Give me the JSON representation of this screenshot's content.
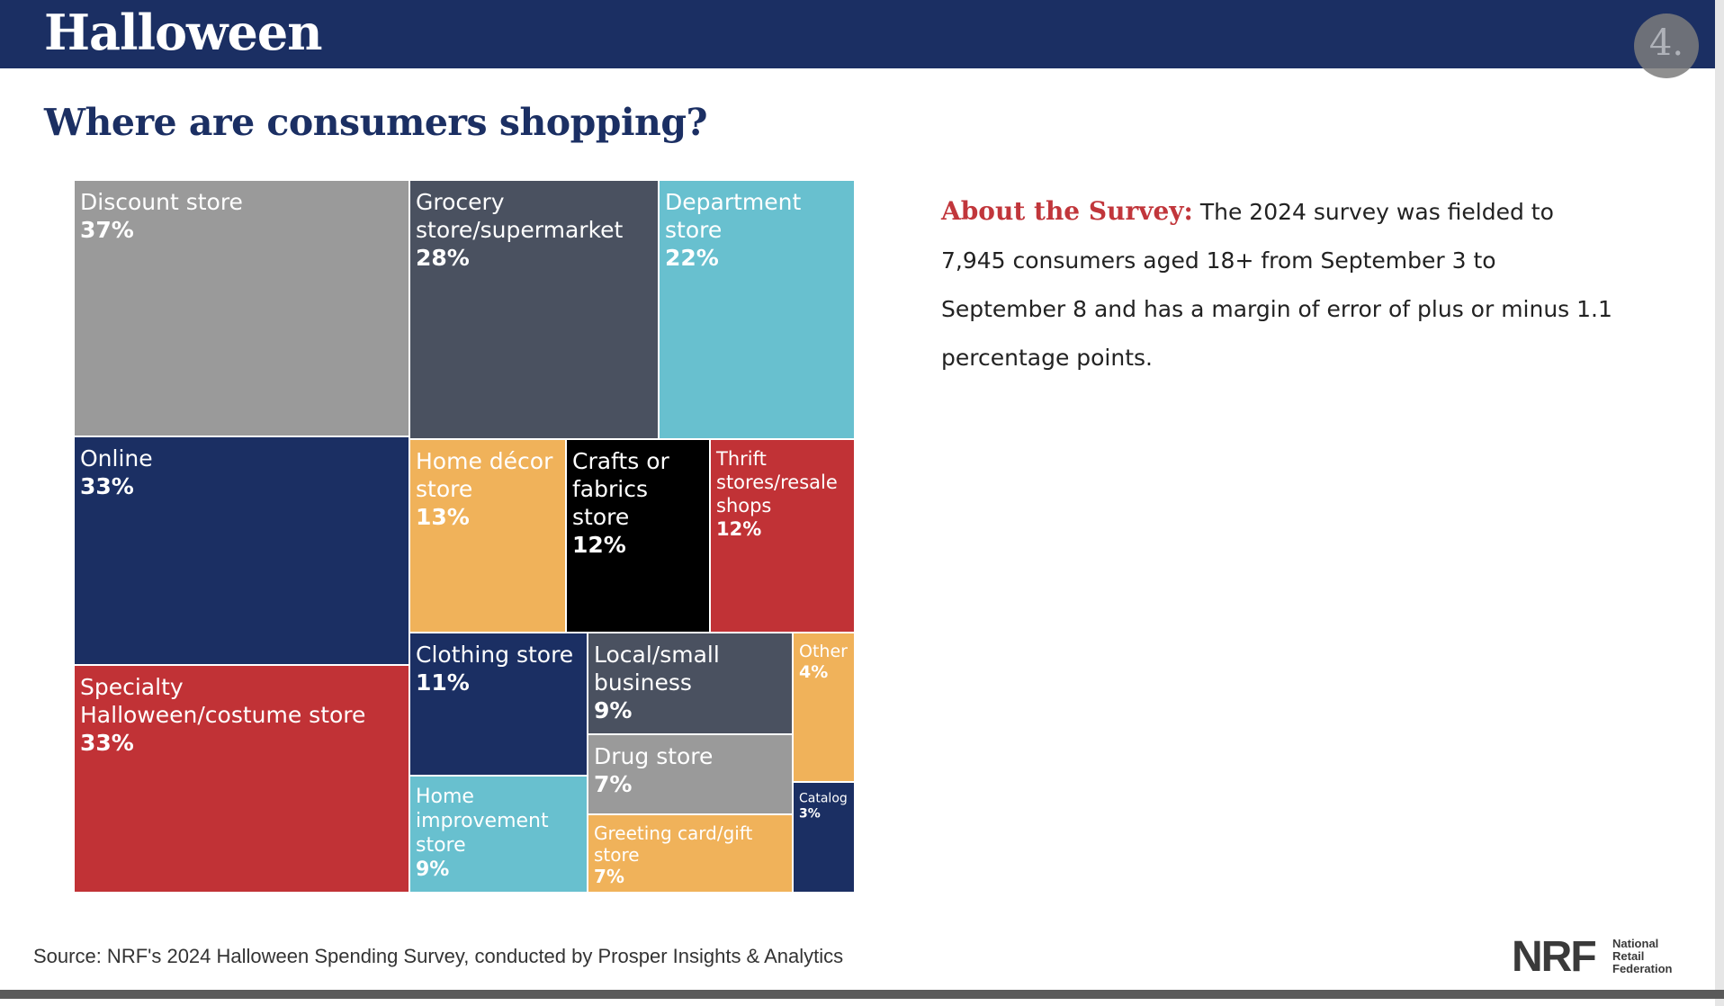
{
  "header": {
    "title": "Halloween",
    "page_number": "4."
  },
  "subtitle": "Where are consumers shopping?",
  "about": {
    "label": "About the Survey:",
    "text": "The 2024 survey was fielded to 7,945 consumers aged 18+ from September 3 to September 8 and has a margin of error of plus or minus 1.1 percentage points."
  },
  "source": "Source: NRF's 2024 Halloween Spending Survey, conducted by Prosper Insights & Analytics",
  "logo": {
    "mark": "NRF",
    "name": "National Retail Federation"
  },
  "colors": {
    "navy": "#1b2f63",
    "gray": "#9a9a9a",
    "slate": "#4a5160",
    "teal": "#68c0cf",
    "orange": "#f0b25a",
    "black": "#000000",
    "red": "#c13236"
  },
  "chart_data": {
    "type": "treemap",
    "title": "Where are consumers shopping?",
    "items": [
      {
        "label": "Discount store",
        "value": 37,
        "display": "37%",
        "color": "#9a9a9a"
      },
      {
        "label": "Grocery store/supermarket",
        "value": 28,
        "display": "28%",
        "color": "#4a5160"
      },
      {
        "label": "Department store",
        "value": 22,
        "display": "22%",
        "color": "#68c0cf"
      },
      {
        "label": "Online",
        "value": 33,
        "display": "33%",
        "color": "#1b2f63"
      },
      {
        "label": "Home décor store",
        "value": 13,
        "display": "13%",
        "color": "#f0b25a"
      },
      {
        "label": "Crafts or fabrics store",
        "value": 12,
        "display": "12%",
        "color": "#000000"
      },
      {
        "label": "Thrift stores/resale shops",
        "value": 12,
        "display": "12%",
        "color": "#c13236"
      },
      {
        "label": "Specialty Halloween/costume store",
        "value": 33,
        "display": "33%",
        "color": "#c13236"
      },
      {
        "label": "Clothing store",
        "value": 11,
        "display": "11%",
        "color": "#1b2f63"
      },
      {
        "label": "Local/small business",
        "value": 9,
        "display": "9%",
        "color": "#4a5160"
      },
      {
        "label": "Other",
        "value": 4,
        "display": "4%",
        "color": "#f0b25a"
      },
      {
        "label": "Drug store",
        "value": 7,
        "display": "7%",
        "color": "#9a9a9a"
      },
      {
        "label": "Home improvement store",
        "value": 9,
        "display": "9%",
        "color": "#68c0cf"
      },
      {
        "label": "Greeting card/gift store",
        "value": 7,
        "display": "7%",
        "color": "#f0b25a"
      },
      {
        "label": "Catalog",
        "value": 3,
        "display": "3%",
        "color": "#1b2f63"
      }
    ]
  }
}
